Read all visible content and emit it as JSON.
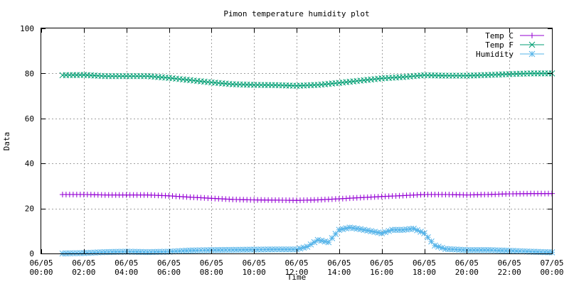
{
  "chart_data": {
    "type": "line",
    "title": "Pimon temperature   humidity plot",
    "xlabel": "Time",
    "ylabel": "Data",
    "xlim": [
      "06/05 00:00",
      "07/05 00:00"
    ],
    "ylim": [
      0,
      100
    ],
    "grid": true,
    "legend_position": "top-right",
    "yticks": [
      "0",
      "20",
      "40",
      "60",
      "80",
      "100"
    ],
    "xticks": [
      {
        "date": "06/05",
        "time": "00:00"
      },
      {
        "date": "06/05",
        "time": "02:00"
      },
      {
        "date": "06/05",
        "time": "04:00"
      },
      {
        "date": "06/05",
        "time": "06:00"
      },
      {
        "date": "06/05",
        "time": "08:00"
      },
      {
        "date": "06/05",
        "time": "10:00"
      },
      {
        "date": "06/05",
        "time": "12:00"
      },
      {
        "date": "06/05",
        "time": "14:00"
      },
      {
        "date": "06/05",
        "time": "16:00"
      },
      {
        "date": "06/05",
        "time": "18:00"
      },
      {
        "date": "06/05",
        "time": "20:00"
      },
      {
        "date": "06/05",
        "time": "22:00"
      },
      {
        "date": "07/05",
        "time": "00:00"
      }
    ],
    "series": [
      {
        "name": "Temp C",
        "color": "#9400d3",
        "marker": "plus",
        "points": [
          [
            "06/05 01:00",
            26.2
          ],
          [
            "06/05 02:00",
            26.2
          ],
          [
            "06/05 03:00",
            26.0
          ],
          [
            "06/05 04:00",
            26.0
          ],
          [
            "06/05 05:00",
            26.0
          ],
          [
            "06/05 06:00",
            25.6
          ],
          [
            "06/05 07:00",
            25.0
          ],
          [
            "06/05 08:00",
            24.5
          ],
          [
            "06/05 09:00",
            24.0
          ],
          [
            "06/05 10:00",
            23.8
          ],
          [
            "06/05 11:00",
            23.7
          ],
          [
            "06/05 12:00",
            23.6
          ],
          [
            "06/05 13:00",
            23.8
          ],
          [
            "06/05 14:00",
            24.3
          ],
          [
            "06/05 15:00",
            24.8
          ],
          [
            "06/05 16:00",
            25.3
          ],
          [
            "06/05 17:00",
            25.7
          ],
          [
            "06/05 18:00",
            26.2
          ],
          [
            "06/05 19:00",
            26.2
          ],
          [
            "06/05 20:00",
            26.0
          ],
          [
            "06/05 21:00",
            26.2
          ],
          [
            "06/05 22:00",
            26.5
          ],
          [
            "06/05 23:00",
            26.6
          ],
          [
            "06/05 24:00",
            26.6
          ]
        ]
      },
      {
        "name": "Temp F",
        "color": "#009e73",
        "marker": "cross",
        "points": [
          [
            "06/05 01:00",
            79.2
          ],
          [
            "06/05 02:00",
            79.3
          ],
          [
            "06/05 03:00",
            78.8
          ],
          [
            "06/05 04:00",
            78.8
          ],
          [
            "06/05 05:00",
            78.8
          ],
          [
            "06/05 06:00",
            78.0
          ],
          [
            "06/05 07:00",
            77.0
          ],
          [
            "06/05 08:00",
            76.0
          ],
          [
            "06/05 09:00",
            75.2
          ],
          [
            "06/05 10:00",
            74.9
          ],
          [
            "06/05 11:00",
            74.8
          ],
          [
            "06/05 12:00",
            74.5
          ],
          [
            "06/05 13:00",
            74.9
          ],
          [
            "06/05 14:00",
            75.8
          ],
          [
            "06/05 15:00",
            76.8
          ],
          [
            "06/05 16:00",
            77.8
          ],
          [
            "06/05 17:00",
            78.4
          ],
          [
            "06/05 18:00",
            79.2
          ],
          [
            "06/05 19:00",
            79.0
          ],
          [
            "06/05 20:00",
            79.0
          ],
          [
            "06/05 21:00",
            79.3
          ],
          [
            "06/05 22:00",
            79.7
          ],
          [
            "06/05 23:00",
            80.0
          ],
          [
            "06/05 24:00",
            80.0
          ]
        ]
      },
      {
        "name": "Humidity",
        "color": "#56b4e9",
        "marker": "star",
        "points": [
          [
            "06/05 01:00",
            0.0
          ],
          [
            "06/05 02:00",
            0.2
          ],
          [
            "06/05 03:00",
            0.6
          ],
          [
            "06/05 04:00",
            0.8
          ],
          [
            "06/05 05:00",
            0.6
          ],
          [
            "06/05 06:00",
            0.8
          ],
          [
            "06/05 07:00",
            1.3
          ],
          [
            "06/05 08:00",
            1.5
          ],
          [
            "06/05 09:00",
            1.6
          ],
          [
            "06/05 10:00",
            1.7
          ],
          [
            "06/05 11:00",
            1.8
          ],
          [
            "06/05 12:00",
            1.8
          ],
          [
            "06/05 12:30",
            3.0
          ],
          [
            "06/05 13:00",
            6.0
          ],
          [
            "06/05 13:30",
            5.0
          ],
          [
            "06/05 14:00",
            10.5
          ],
          [
            "06/05 14:30",
            11.5
          ],
          [
            "06/05 15:00",
            10.8
          ],
          [
            "06/05 16:00",
            9.0
          ],
          [
            "06/05 16:30",
            10.5
          ],
          [
            "06/05 17:00",
            10.5
          ],
          [
            "06/05 17:30",
            11.0
          ],
          [
            "06/05 18:00",
            9.0
          ],
          [
            "06/05 18:30",
            3.5
          ],
          [
            "06/05 19:00",
            2.0
          ],
          [
            "06/05 20:00",
            1.5
          ],
          [
            "06/05 21:00",
            1.5
          ],
          [
            "06/05 22:00",
            1.2
          ],
          [
            "06/05 23:00",
            0.8
          ],
          [
            "06/05 24:00",
            0.5
          ]
        ]
      }
    ]
  }
}
